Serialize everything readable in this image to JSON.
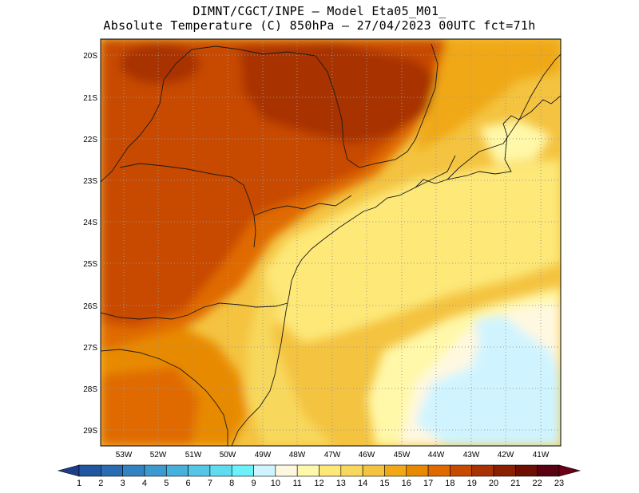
{
  "header": {
    "line1": "DIMNT/CGCT/INPE —  Model Eta05_M01_",
    "line2": "Absolute Temperature (C) 850hPa —  27/04/2023 00UTC fct=71h"
  },
  "map": {
    "lat_labels": [
      "20S",
      "21S",
      "22S",
      "23S",
      "24S",
      "25S",
      "26S",
      "27S",
      "28S",
      "29S"
    ],
    "lon_labels": [
      "53W",
      "52W",
      "51W",
      "50W",
      "49W",
      "48W",
      "47W",
      "46W",
      "45W",
      "44W",
      "43W",
      "42W",
      "41W"
    ]
  },
  "colorbar": {
    "labels": [
      "1",
      "2",
      "3",
      "4",
      "5",
      "6",
      "7",
      "8",
      "9",
      "10",
      "11",
      "12",
      "13",
      "14",
      "15",
      "16",
      "17",
      "18",
      "19",
      "20",
      "21",
      "22",
      "23"
    ],
    "colors": [
      "#1e3c8c",
      "#2156a0",
      "#2a6cb2",
      "#3383c2",
      "#3d9ad0",
      "#48b0dc",
      "#55c6e6",
      "#5fdcf0",
      "#6cf0fa",
      "#d0f4ff",
      "#fff8e0",
      "#fff8a8",
      "#fde878",
      "#f8d85c",
      "#f4c340",
      "#f0a818",
      "#e88a00",
      "#e06a00",
      "#c84a00",
      "#a83200",
      "#8a2000",
      "#6e0e00",
      "#5a0010",
      "#6a0018"
    ]
  }
}
